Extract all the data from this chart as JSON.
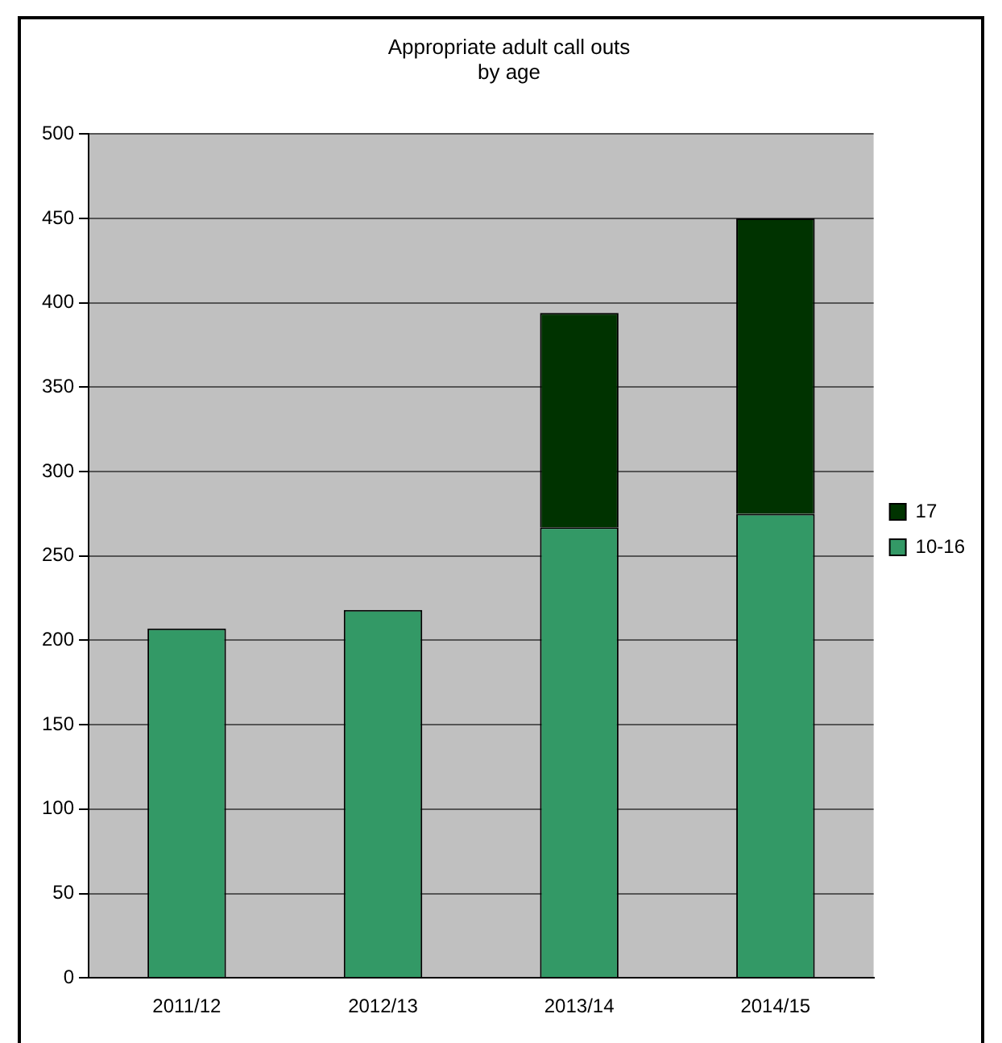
{
  "chart_data": {
    "type": "bar",
    "title": "Appropriate adult call outs\nby age",
    "categories": [
      "2011/12",
      "2012/13",
      "2013/14",
      "2014/15"
    ],
    "stacked": true,
    "series": [
      {
        "name": "10-16",
        "color": "#339966",
        "values": [
          207,
          218,
          267,
          275
        ]
      },
      {
        "name": "17",
        "color": "#003300",
        "values": [
          null,
          null,
          127,
          175
        ]
      }
    ],
    "ylim": [
      0,
      500
    ],
    "yticks": [
      0,
      50,
      100,
      150,
      200,
      250,
      300,
      350,
      400,
      450,
      500
    ],
    "grid": "y",
    "legend": "right"
  }
}
